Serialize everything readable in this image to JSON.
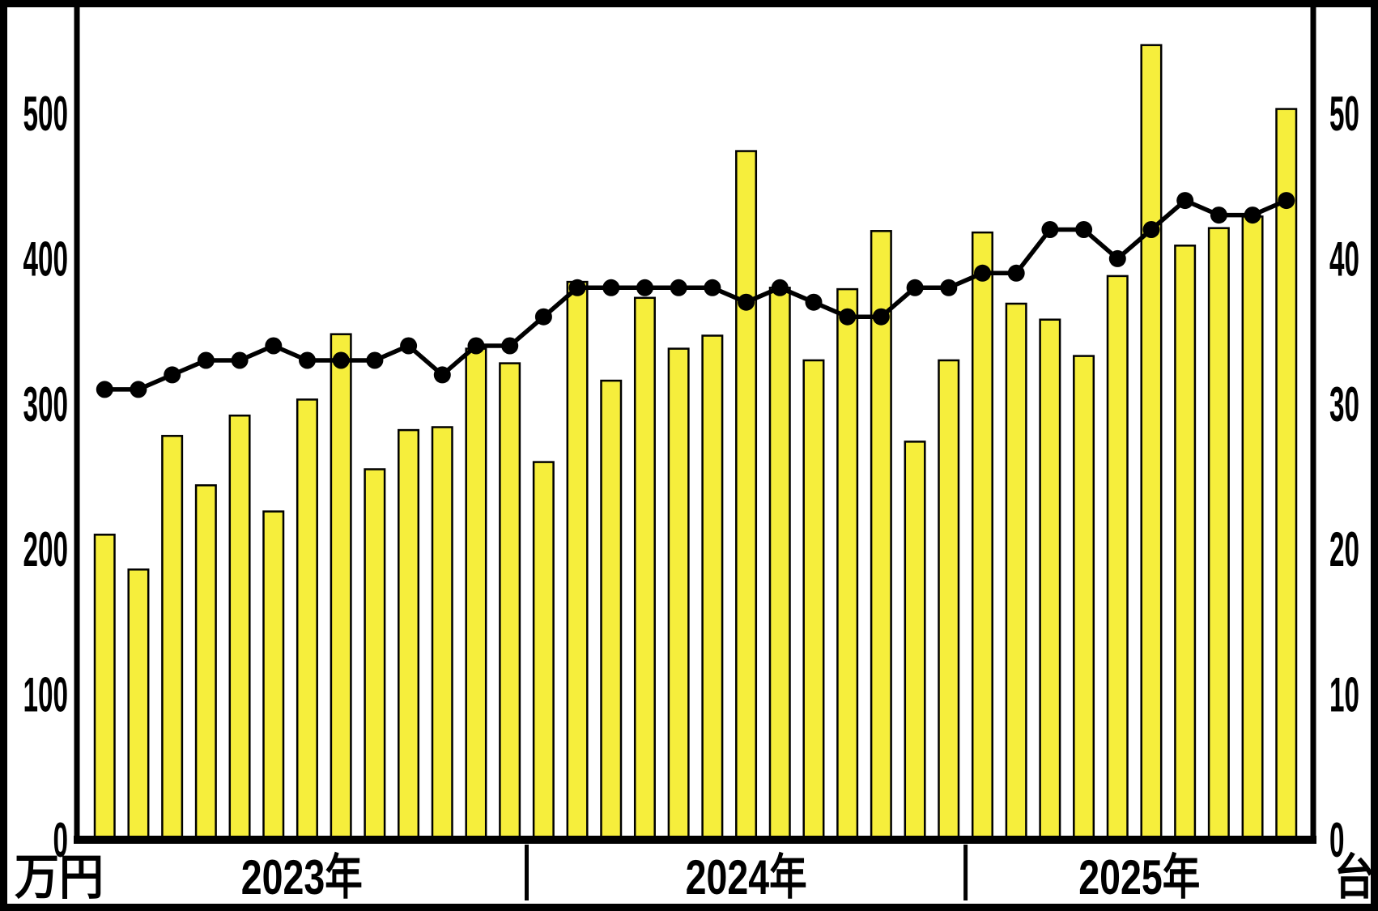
{
  "chart_data": {
    "type": "bar+line",
    "title": "",
    "grid": "off",
    "legend": "none",
    "left_axis": {
      "unit_label": "万円",
      "ticks": [
        "0",
        "100",
        "200",
        "300",
        "400",
        "500"
      ],
      "range": [
        0,
        576
      ]
    },
    "right_axis": {
      "unit_label": "台",
      "ticks": [
        "0",
        "10",
        "20",
        "30",
        "40",
        "50"
      ],
      "range": [
        0,
        57.6
      ]
    },
    "x_groups": [
      {
        "label": "2023年",
        "count": 13
      },
      {
        "label": "2024年",
        "count": 13
      },
      {
        "label": "2025年",
        "count": 10
      }
    ],
    "series": [
      {
        "name": "price-bars",
        "type": "bar",
        "axis": "left",
        "color": "#f6ee3c",
        "outline": "#000000",
        "values": [
          210,
          186,
          278,
          244,
          292,
          226,
          303,
          348,
          255,
          282,
          284,
          338,
          328,
          260,
          384,
          316,
          373,
          338,
          347,
          474,
          380,
          330,
          379,
          419,
          274,
          330,
          418,
          369,
          358,
          333,
          388,
          547,
          409,
          421,
          429,
          503
        ]
      },
      {
        "name": "units-line",
        "type": "line",
        "axis": "right",
        "color": "#000000",
        "values": [
          31,
          31,
          32,
          33,
          33,
          34,
          33,
          33,
          33,
          34,
          32,
          34,
          34,
          36,
          38,
          38,
          38,
          38,
          38,
          37,
          38,
          37,
          36,
          36,
          38,
          38,
          39,
          39,
          42,
          42,
          40,
          42,
          44,
          43,
          43,
          44
        ]
      }
    ]
  }
}
